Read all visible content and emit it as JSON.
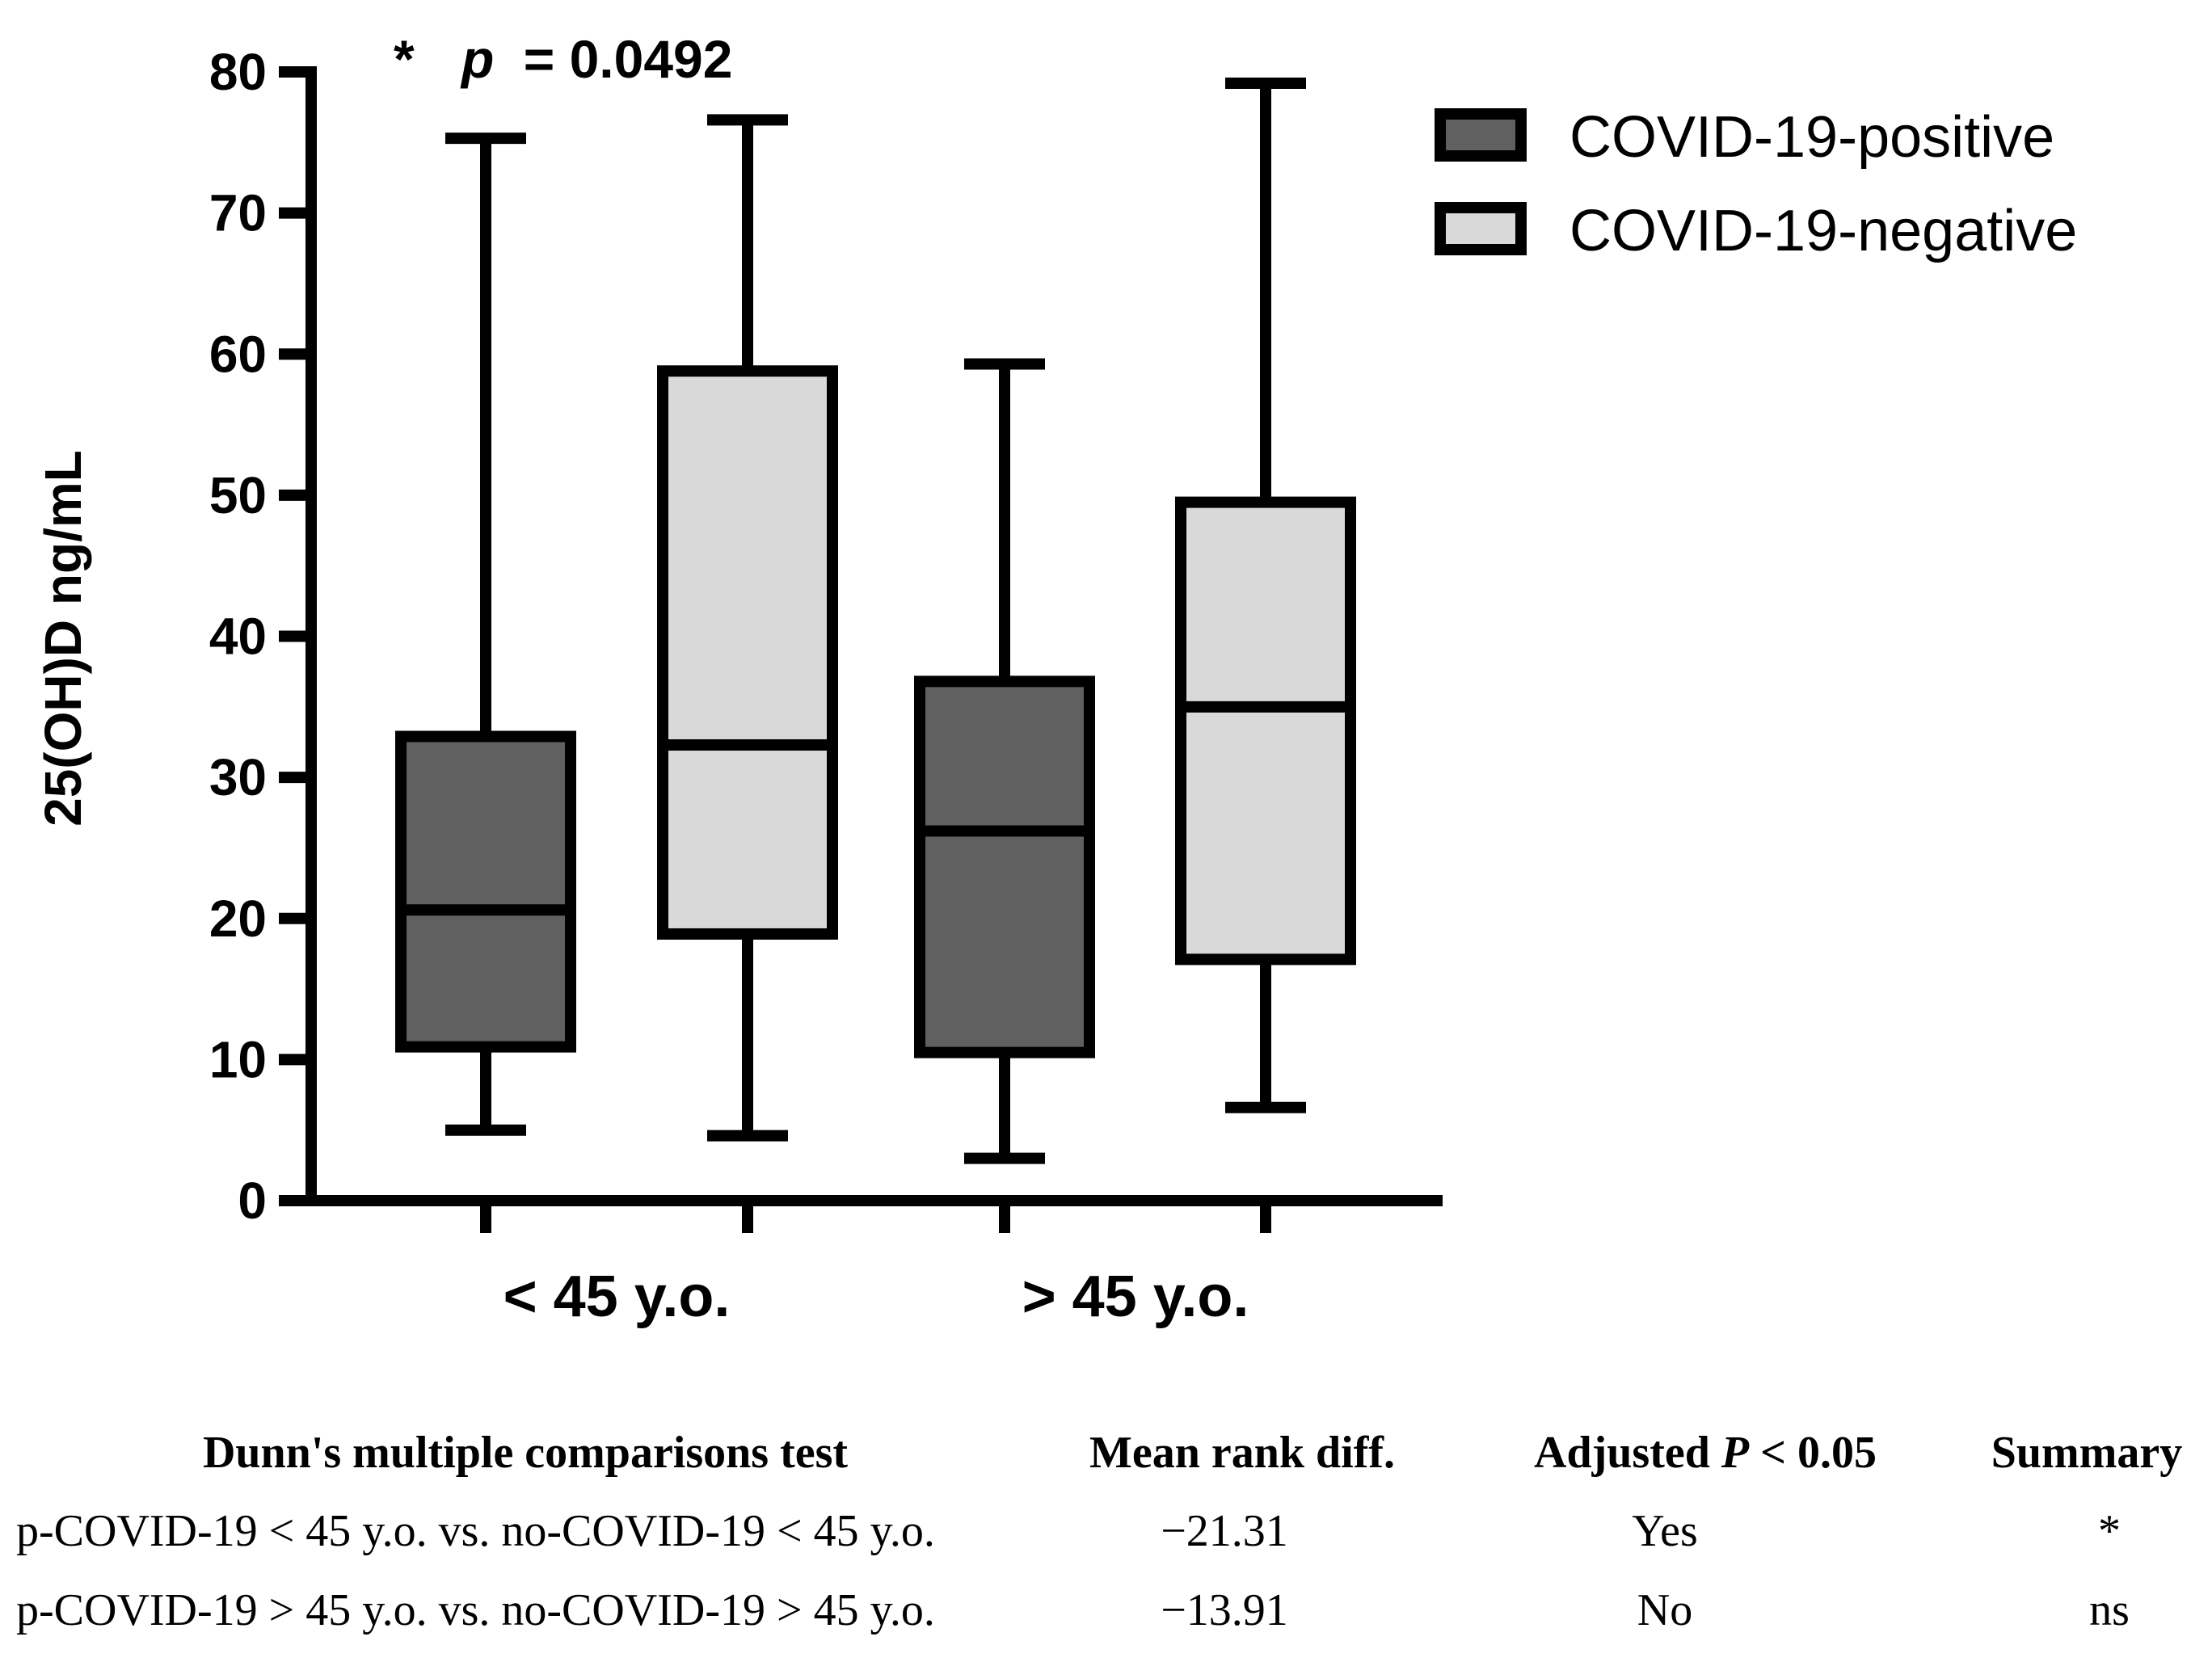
{
  "chart_data": {
    "type": "boxplot",
    "ylabel": "25(OH)D ng/mL",
    "ylim": [
      0,
      80
    ],
    "yticks": [
      "0",
      "10",
      "20",
      "30",
      "40",
      "50",
      "60",
      "70",
      "80"
    ],
    "categories": [
      "< 45 y.o.",
      "> 45 y.o."
    ],
    "annotation": {
      "star": "*",
      "p_label": "p",
      "p_value": "= 0.0492"
    },
    "colors": {
      "positive": "#606060",
      "negative": "#d9d9d9",
      "stroke": "#000000"
    },
    "series": [
      {
        "name": "COVID-19-positive",
        "boxes": [
          {
            "category": "< 45 y.o.",
            "min": 5.0,
            "q1": 10.9,
            "median": 20.6,
            "q3": 32.9,
            "max": 75.3
          },
          {
            "category": "> 45 y.o.",
            "min": 3.0,
            "q1": 10.5,
            "median": 26.2,
            "q3": 36.8,
            "max": 59.3
          }
        ]
      },
      {
        "name": "COVID-19-negative",
        "boxes": [
          {
            "category": "< 45 y.o.",
            "min": 4.6,
            "q1": 18.9,
            "median": 32.3,
            "q3": 58.8,
            "max": 76.6
          },
          {
            "category": "> 45 y.o.",
            "min": 6.6,
            "q1": 17.1,
            "median": 35.0,
            "q3": 49.5,
            "max": 79.2
          }
        ]
      }
    ]
  },
  "table": {
    "headers": {
      "test": "Dunn's multiple comparisons test",
      "diff": "Mean rank diff.",
      "adj_prefix": "Adjusted ",
      "adj_p": "P",
      "adj_suffix": " < 0.05",
      "summary": "Summary"
    },
    "rows": [
      {
        "comparison": "p-COVID-19 < 45 y.o. vs. no-COVID-19 < 45 y.o.",
        "diff": "−21.31",
        "adjusted": "Yes",
        "summary": "*"
      },
      {
        "comparison": "p-COVID-19 > 45 y.o. vs. no-COVID-19 > 45 y.o.",
        "diff": "−13.91",
        "adjusted": "No",
        "summary": "ns"
      }
    ]
  }
}
